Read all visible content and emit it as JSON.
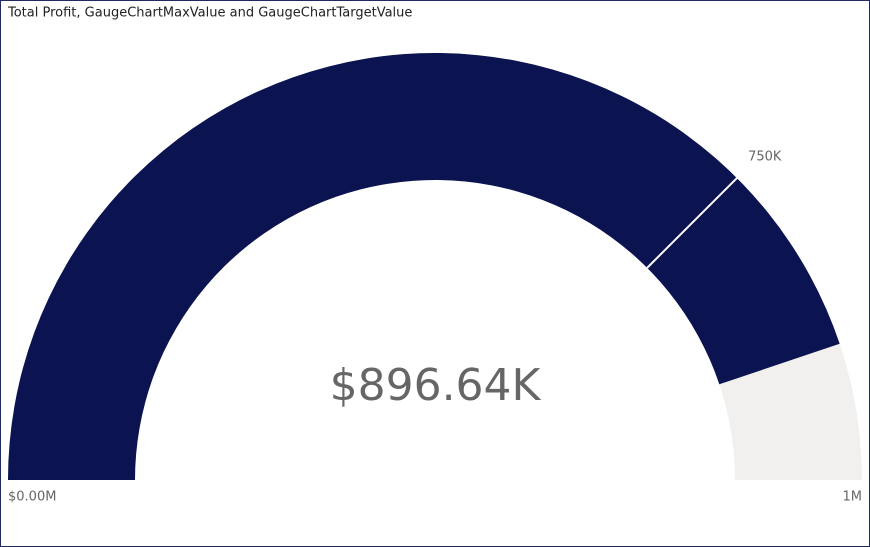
{
  "chart_data": {
    "type": "gauge",
    "title": "Total Profit, GaugeChartMaxValue and GaugeChartTargetValue",
    "values": [
      896640
    ],
    "value_labels": [
      "$896.64K"
    ],
    "ylim": [
      0,
      1000000
    ],
    "yticks": [
      {
        "value": 0,
        "label": "$0.00M"
      },
      {
        "value": 1000000,
        "label": "1M"
      }
    ],
    "target": {
      "value": 750000,
      "label": "750K"
    },
    "color": "#0b1350",
    "track_color": "#f2f0ee",
    "target_color": "#ffffff"
  }
}
